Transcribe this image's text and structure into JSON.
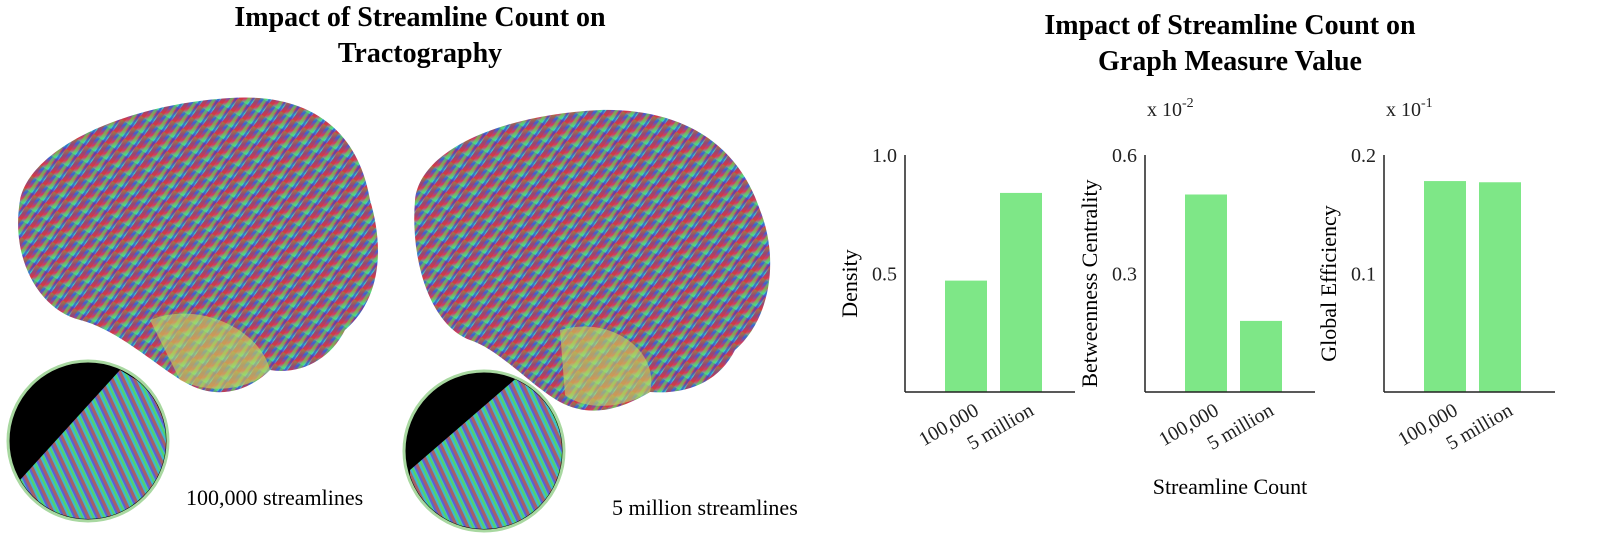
{
  "figure": {
    "left_title": "Impact of Streamline Count on\nTractography",
    "right_title": "Impact of Streamline Count on\nGraph Measure Value",
    "caption_left": "100,000 streamlines",
    "caption_right": "5 million streamlines",
    "shared_xlabel": "Streamline Count"
  },
  "colors": {
    "bar": "#7ee787",
    "axis": "#222222"
  },
  "chart_data": [
    {
      "type": "bar",
      "categories": [
        "100,000",
        "5 million"
      ],
      "values": [
        0.47,
        0.84
      ],
      "ylabel": "Density",
      "ylim": [
        0,
        1.0
      ],
      "yticks": [
        "0.5",
        "1.0"
      ],
      "exponent": "",
      "grid": false
    },
    {
      "type": "bar",
      "categories": [
        "100,000",
        "5 million"
      ],
      "values": [
        0.5,
        0.18
      ],
      "ylabel": "Betweenness Centrality",
      "ylim": [
        0,
        0.6
      ],
      "yticks": [
        "0.3",
        "0.6"
      ],
      "exponent": "x 10-2",
      "grid": false
    },
    {
      "type": "bar",
      "categories": [
        "100,000",
        "5 million"
      ],
      "values": [
        0.178,
        0.177
      ],
      "ylabel": "Global Efficiency",
      "ylim": [
        0,
        0.2
      ],
      "yticks": [
        "0.1",
        "0.2"
      ],
      "exponent": "x 10-1",
      "grid": false
    }
  ]
}
